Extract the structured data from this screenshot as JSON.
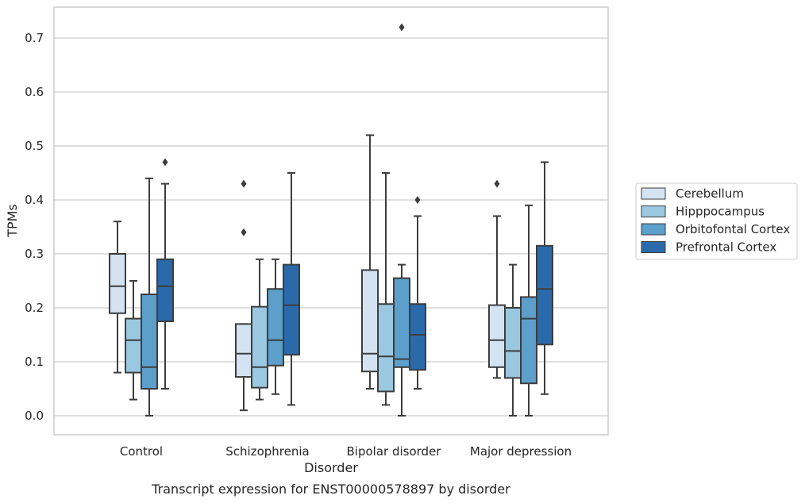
{
  "chart_data": {
    "type": "boxplot",
    "title": "",
    "caption": "Transcript expression for ENST00000578897 by disorder",
    "xlabel": "Disorder",
    "ylabel": "TPMs",
    "ylim": [
      -0.035,
      0.76
    ],
    "yticks": [
      0.0,
      0.1,
      0.2,
      0.3,
      0.4,
      0.5,
      0.6,
      0.7
    ],
    "ytick_labels": [
      "0.0",
      "0.1",
      "0.2",
      "0.3",
      "0.4",
      "0.5",
      "0.6",
      "0.7"
    ],
    "grid": "horizontal",
    "legend_position": "right-center",
    "categories": [
      "Control",
      "Schizophrenia",
      "Bipolar disorder",
      "Major depression"
    ],
    "series": [
      {
        "name": "Cerebellum",
        "color": "#d3e3f2",
        "boxes": [
          {
            "whisker_low": 0.08,
            "q1": 0.19,
            "median": 0.24,
            "q3": 0.3,
            "whisker_high": 0.36,
            "outliers": []
          },
          {
            "whisker_low": 0.01,
            "q1": 0.072,
            "median": 0.115,
            "q3": 0.17,
            "whisker_high": 0.17,
            "outliers": [
              0.34,
              0.43
            ]
          },
          {
            "whisker_low": 0.05,
            "q1": 0.082,
            "median": 0.115,
            "q3": 0.27,
            "whisker_high": 0.52,
            "outliers": []
          },
          {
            "whisker_low": 0.07,
            "q1": 0.09,
            "median": 0.14,
            "q3": 0.205,
            "whisker_high": 0.37,
            "outliers": [
              0.43
            ]
          }
        ]
      },
      {
        "name": "Hipppocampus",
        "color": "#9ac8e0",
        "boxes": [
          {
            "whisker_low": 0.03,
            "q1": 0.08,
            "median": 0.14,
            "q3": 0.18,
            "whisker_high": 0.25,
            "outliers": []
          },
          {
            "whisker_low": 0.03,
            "q1": 0.052,
            "median": 0.09,
            "q3": 0.202,
            "whisker_high": 0.29,
            "outliers": []
          },
          {
            "whisker_low": 0.02,
            "q1": 0.045,
            "median": 0.11,
            "q3": 0.207,
            "whisker_high": 0.45,
            "outliers": []
          },
          {
            "whisker_low": 0.0,
            "q1": 0.07,
            "median": 0.12,
            "q3": 0.2,
            "whisker_high": 0.28,
            "outliers": []
          }
        ]
      },
      {
        "name": "Orbitofontal Cortex",
        "color": "#5c9fcb",
        "boxes": [
          {
            "whisker_low": 0.0,
            "q1": 0.05,
            "median": 0.09,
            "q3": 0.225,
            "whisker_high": 0.44,
            "outliers": []
          },
          {
            "whisker_low": 0.04,
            "q1": 0.093,
            "median": 0.14,
            "q3": 0.235,
            "whisker_high": 0.29,
            "outliers": []
          },
          {
            "whisker_low": 0.0,
            "q1": 0.09,
            "median": 0.105,
            "q3": 0.255,
            "whisker_high": 0.28,
            "outliers": [
              0.72
            ]
          },
          {
            "whisker_low": 0.0,
            "q1": 0.06,
            "median": 0.18,
            "q3": 0.22,
            "whisker_high": 0.39,
            "outliers": []
          }
        ]
      },
      {
        "name": "Prefrontal Cortex",
        "color": "#2a6aab",
        "boxes": [
          {
            "whisker_low": 0.05,
            "q1": 0.175,
            "median": 0.24,
            "q3": 0.29,
            "whisker_high": 0.43,
            "outliers": [
              0.47
            ]
          },
          {
            "whisker_low": 0.02,
            "q1": 0.113,
            "median": 0.205,
            "q3": 0.28,
            "whisker_high": 0.45,
            "outliers": []
          },
          {
            "whisker_low": 0.05,
            "q1": 0.085,
            "median": 0.15,
            "q3": 0.207,
            "whisker_high": 0.37,
            "outliers": [
              0.4
            ]
          },
          {
            "whisker_low": 0.04,
            "q1": 0.132,
            "median": 0.235,
            "q3": 0.315,
            "whisker_high": 0.47,
            "outliers": []
          }
        ]
      }
    ]
  }
}
